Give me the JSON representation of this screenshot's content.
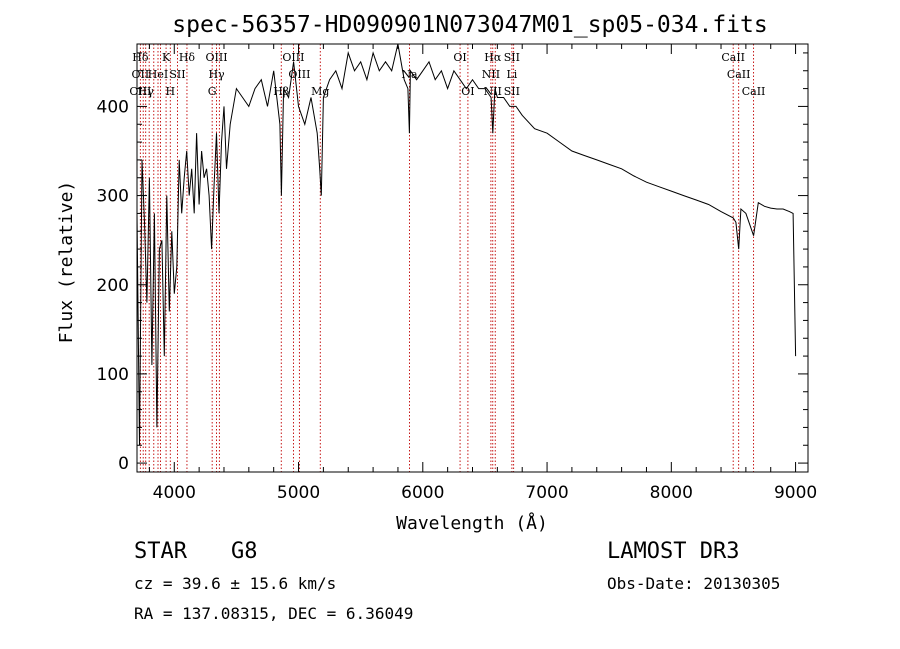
{
  "chart_data": {
    "type": "line",
    "title": "spec-56357-HD090901N073047M01_sp05-034.fits",
    "xlabel": "Wavelength (Å)",
    "ylabel": "Flux (relative)",
    "xlim": [
      3700,
      9100
    ],
    "ylim": [
      -10,
      470
    ],
    "xticks": [
      4000,
      5000,
      6000,
      7000,
      8000,
      9000
    ],
    "yticks": [
      0,
      100,
      200,
      300,
      400
    ],
    "series": [
      {
        "name": "spectrum",
        "x": [
          3700,
          3720,
          3740,
          3760,
          3780,
          3800,
          3820,
          3840,
          3860,
          3880,
          3900,
          3920,
          3940,
          3960,
          3980,
          4000,
          4020,
          4040,
          4060,
          4080,
          4100,
          4120,
          4140,
          4160,
          4180,
          4200,
          4220,
          4240,
          4260,
          4280,
          4300,
          4320,
          4340,
          4360,
          4380,
          4400,
          4420,
          4450,
          4500,
          4550,
          4600,
          4650,
          4700,
          4750,
          4800,
          4850,
          4862,
          4880,
          4920,
          4960,
          5000,
          5050,
          5100,
          5150,
          5170,
          5183,
          5200,
          5250,
          5300,
          5350,
          5400,
          5450,
          5500,
          5550,
          5600,
          5650,
          5700,
          5750,
          5800,
          5850,
          5880,
          5892,
          5900,
          5950,
          6000,
          6050,
          6100,
          6150,
          6200,
          6250,
          6300,
          6350,
          6400,
          6450,
          6500,
          6550,
          6563,
          6580,
          6600,
          6650,
          6700,
          6750,
          6800,
          6900,
          7000,
          7100,
          7200,
          7300,
          7400,
          7500,
          7600,
          7700,
          7800,
          7900,
          8000,
          8100,
          8200,
          8300,
          8400,
          8498,
          8520,
          8542,
          8560,
          8600,
          8662,
          8700,
          8750,
          8800,
          8850,
          8900,
          8950,
          8980,
          9000
        ],
        "values": [
          280,
          20,
          340,
          270,
          180,
          320,
          110,
          280,
          40,
          240,
          250,
          120,
          300,
          170,
          260,
          190,
          220,
          340,
          280,
          320,
          350,
          300,
          330,
          280,
          370,
          290,
          350,
          320,
          330,
          300,
          240,
          310,
          370,
          280,
          360,
          400,
          330,
          380,
          420,
          410,
          400,
          420,
          430,
          400,
          440,
          380,
          300,
          420,
          410,
          450,
          400,
          380,
          410,
          370,
          330,
          300,
          410,
          430,
          440,
          420,
          460,
          440,
          450,
          430,
          460,
          440,
          450,
          440,
          470,
          430,
          420,
          370,
          440,
          430,
          440,
          450,
          430,
          440,
          420,
          440,
          430,
          420,
          430,
          420,
          420,
          410,
          370,
          420,
          410,
          410,
          400,
          400,
          390,
          375,
          370,
          360,
          350,
          345,
          340,
          335,
          330,
          322,
          315,
          310,
          305,
          300,
          295,
          290,
          282,
          275,
          270,
          240,
          285,
          280,
          255,
          292,
          288,
          286,
          285,
          285,
          282,
          280,
          120
        ]
      }
    ],
    "lines": [
      {
        "wl": 3727,
        "top": "Hδ",
        "mid": "OII",
        "bot": "OIII"
      },
      {
        "wl": 3750,
        "top": "",
        "mid": "",
        "bot": ""
      },
      {
        "wl": 3770,
        "top": "",
        "mid": "",
        "bot": "Hγ"
      },
      {
        "wl": 3798,
        "top": "",
        "mid": "",
        "bot": ""
      },
      {
        "wl": 3835,
        "top": "",
        "mid": "",
        "bot": ""
      },
      {
        "wl": 3869,
        "top": "",
        "mid": "HeI",
        "bot": ""
      },
      {
        "wl": 3889,
        "top": "",
        "mid": "",
        "bot": ""
      },
      {
        "wl": 3934,
        "top": "K",
        "mid": "",
        "bot": ""
      },
      {
        "wl": 3968,
        "top": "",
        "mid": "",
        "bot": "H"
      },
      {
        "wl": 4026,
        "top": "",
        "mid": "SII",
        "bot": ""
      },
      {
        "wl": 4102,
        "top": "Hδ",
        "mid": "",
        "bot": ""
      },
      {
        "wl": 4305,
        "top": "",
        "mid": "",
        "bot": "G"
      },
      {
        "wl": 4340,
        "top": "OIII",
        "mid": "Hγ",
        "bot": ""
      },
      {
        "wl": 4363,
        "top": "",
        "mid": "",
        "bot": ""
      },
      {
        "wl": 4861,
        "top": "",
        "mid": "",
        "bot": "Hβ"
      },
      {
        "wl": 4959,
        "top": "OIII",
        "mid": "",
        "bot": ""
      },
      {
        "wl": 5007,
        "top": "",
        "mid": "OIII",
        "bot": ""
      },
      {
        "wl": 5175,
        "top": "",
        "mid": "",
        "bot": "Mg"
      },
      {
        "wl": 5893,
        "top": "",
        "mid": "Na",
        "bot": ""
      },
      {
        "wl": 6300,
        "top": "OI",
        "mid": "",
        "bot": ""
      },
      {
        "wl": 6363,
        "top": "",
        "mid": "",
        "bot": "OI"
      },
      {
        "wl": 6548,
        "top": "",
        "mid": "NII",
        "bot": ""
      },
      {
        "wl": 6563,
        "top": "Hα",
        "mid": "",
        "bot": "NII"
      },
      {
        "wl": 6583,
        "top": "",
        "mid": "",
        "bot": ""
      },
      {
        "wl": 6717,
        "top": "SII",
        "mid": "Li",
        "bot": "SII"
      },
      {
        "wl": 6731,
        "top": "",
        "mid": "",
        "bot": ""
      },
      {
        "wl": 8498,
        "top": "CaII",
        "mid": "",
        "bot": ""
      },
      {
        "wl": 8542,
        "top": "",
        "mid": "CaII",
        "bot": ""
      },
      {
        "wl": 8662,
        "top": "",
        "mid": "",
        "bot": "CaII"
      }
    ]
  },
  "info": {
    "class_label": "STAR",
    "subclass": "G8",
    "survey": "LAMOST DR3",
    "cz": "cz = 39.6 ± 15.6 km/s",
    "obs_date": "Obs-Date: 20130305",
    "coords": "RA = 137.08315, DEC =   6.36049"
  }
}
